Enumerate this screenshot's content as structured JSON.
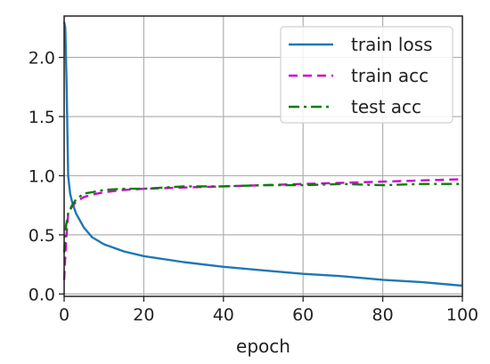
{
  "chart_data": {
    "type": "line",
    "xlabel": "epoch",
    "ylabel": "",
    "xlim": [
      0,
      100
    ],
    "ylim": [
      -0.02,
      2.35
    ],
    "x_ticks": [
      0,
      20,
      40,
      60,
      80,
      100
    ],
    "x_tick_labels": [
      "0",
      "20",
      "40",
      "60",
      "80",
      "100"
    ],
    "y_ticks": [
      0.0,
      0.5,
      1.0,
      1.5,
      2.0
    ],
    "y_tick_labels": [
      "0.0",
      "0.5",
      "1.0",
      "1.5",
      "2.0"
    ],
    "grid": true,
    "legend_position": "top-right",
    "series": [
      {
        "name": "train loss",
        "color": "#1f77b4",
        "style": "solid",
        "x": [
          0,
          0.3,
          0.6,
          1,
          1.5,
          2,
          3,
          5,
          7,
          10,
          15,
          20,
          30,
          40,
          50,
          60,
          70,
          80,
          90,
          100
        ],
        "y": [
          2.3,
          2.25,
          1.8,
          1.0,
          0.85,
          0.78,
          0.68,
          0.56,
          0.48,
          0.42,
          0.36,
          0.32,
          0.27,
          0.23,
          0.2,
          0.17,
          0.15,
          0.12,
          0.1,
          0.07
        ]
      },
      {
        "name": "train acc",
        "color": "#cc00cc",
        "style": "dashed",
        "x": [
          0,
          0.5,
          1,
          2,
          3,
          5,
          7,
          10,
          15,
          20,
          30,
          40,
          50,
          60,
          70,
          80,
          90,
          100
        ],
        "y": [
          0.12,
          0.45,
          0.68,
          0.74,
          0.78,
          0.82,
          0.84,
          0.86,
          0.88,
          0.89,
          0.9,
          0.91,
          0.92,
          0.93,
          0.94,
          0.95,
          0.96,
          0.97
        ]
      },
      {
        "name": "test acc",
        "color": "#008000",
        "style": "dashdot",
        "x": [
          0,
          0.5,
          1,
          2,
          3,
          5,
          7,
          10,
          15,
          20,
          30,
          40,
          50,
          60,
          70,
          80,
          90,
          100
        ],
        "y": [
          0.35,
          0.58,
          0.68,
          0.75,
          0.8,
          0.85,
          0.86,
          0.88,
          0.89,
          0.89,
          0.91,
          0.91,
          0.92,
          0.92,
          0.93,
          0.92,
          0.93,
          0.93
        ]
      }
    ]
  }
}
